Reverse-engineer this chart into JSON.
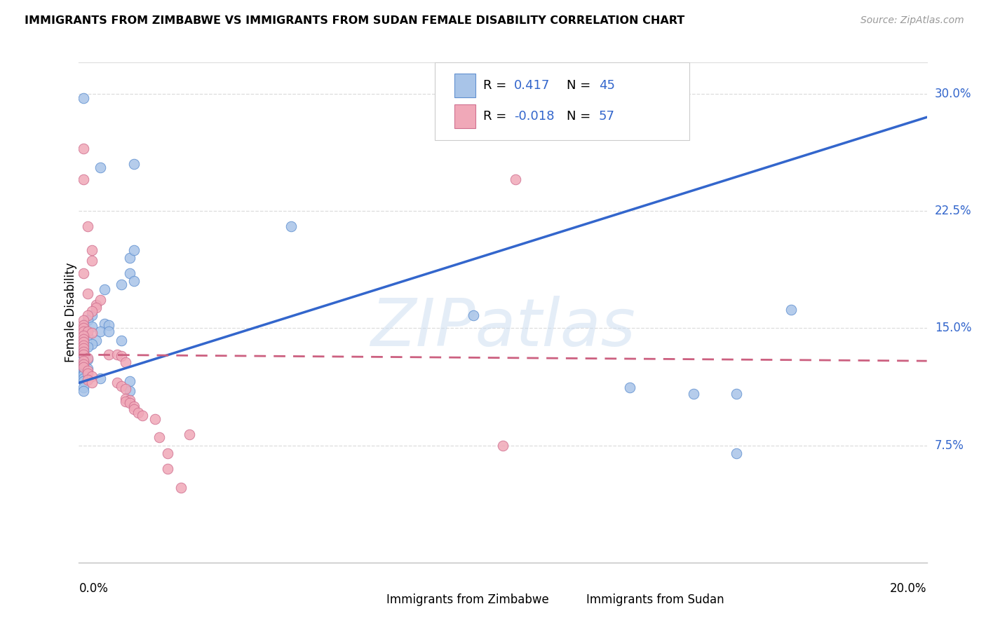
{
  "title": "IMMIGRANTS FROM ZIMBABWE VS IMMIGRANTS FROM SUDAN FEMALE DISABILITY CORRELATION CHART",
  "source": "Source: ZipAtlas.com",
  "ylabel": "Female Disability",
  "yticks": [
    0.075,
    0.15,
    0.225,
    0.3
  ],
  "ytick_labels": [
    "7.5%",
    "15.0%",
    "22.5%",
    "30.0%"
  ],
  "xlim": [
    0.0,
    0.2
  ],
  "ylim": [
    0.0,
    0.32
  ],
  "legend_r1_black": "R = ",
  "legend_r1_blue": " 0.417   N = 45",
  "legend_r2_black": "R = ",
  "legend_r2_blue": "-0.018   N = 57",
  "watermark": "ZIPatlas",
  "blue_face": "#A8C4E8",
  "blue_edge": "#6090D0",
  "blue_line": "#3366CC",
  "pink_face": "#F0A8B8",
  "pink_edge": "#D07090",
  "pink_line": "#CC6080",
  "tick_color": "#3366CC",
  "blue_scatter_x": [
    0.001,
    0.005,
    0.013,
    0.006,
    0.012,
    0.012,
    0.013,
    0.01,
    0.003,
    0.002,
    0.003,
    0.006,
    0.007,
    0.005,
    0.002,
    0.004,
    0.003,
    0.002,
    0.001,
    0.001,
    0.001,
    0.002,
    0.001,
    0.001,
    0.002,
    0.001,
    0.001,
    0.001,
    0.001,
    0.001,
    0.001,
    0.001,
    0.005,
    0.007,
    0.01,
    0.012,
    0.012,
    0.013,
    0.05,
    0.093,
    0.13,
    0.145,
    0.155,
    0.155,
    0.168
  ],
  "blue_scatter_y": [
    0.297,
    0.253,
    0.255,
    0.175,
    0.195,
    0.185,
    0.18,
    0.178,
    0.158,
    0.155,
    0.151,
    0.153,
    0.152,
    0.148,
    0.145,
    0.142,
    0.14,
    0.138,
    0.136,
    0.134,
    0.132,
    0.13,
    0.128,
    0.126,
    0.124,
    0.123,
    0.121,
    0.12,
    0.118,
    0.116,
    0.112,
    0.11,
    0.118,
    0.148,
    0.142,
    0.116,
    0.11,
    0.2,
    0.215,
    0.158,
    0.112,
    0.108,
    0.108,
    0.07,
    0.162
  ],
  "pink_scatter_x": [
    0.001,
    0.001,
    0.002,
    0.003,
    0.003,
    0.001,
    0.002,
    0.004,
    0.005,
    0.004,
    0.003,
    0.002,
    0.001,
    0.001,
    0.001,
    0.001,
    0.002,
    0.003,
    0.001,
    0.001,
    0.001,
    0.001,
    0.001,
    0.001,
    0.001,
    0.002,
    0.001,
    0.001,
    0.001,
    0.002,
    0.002,
    0.003,
    0.002,
    0.003,
    0.007,
    0.009,
    0.01,
    0.011,
    0.009,
    0.01,
    0.011,
    0.011,
    0.012,
    0.011,
    0.012,
    0.013,
    0.013,
    0.014,
    0.015,
    0.018,
    0.019,
    0.021,
    0.021,
    0.024,
    0.026,
    0.1,
    0.103
  ],
  "pink_scatter_y": [
    0.265,
    0.245,
    0.215,
    0.2,
    0.193,
    0.185,
    0.172,
    0.165,
    0.168,
    0.163,
    0.161,
    0.158,
    0.155,
    0.152,
    0.15,
    0.148,
    0.148,
    0.147,
    0.145,
    0.143,
    0.141,
    0.139,
    0.137,
    0.135,
    0.133,
    0.131,
    0.129,
    0.127,
    0.125,
    0.123,
    0.121,
    0.119,
    0.117,
    0.115,
    0.133,
    0.133,
    0.132,
    0.128,
    0.115,
    0.113,
    0.111,
    0.105,
    0.104,
    0.103,
    0.102,
    0.1,
    0.098,
    0.096,
    0.094,
    0.092,
    0.08,
    0.07,
    0.06,
    0.048,
    0.082,
    0.075,
    0.245
  ],
  "blue_trend_x": [
    0.0,
    0.2
  ],
  "blue_trend_y": [
    0.115,
    0.285
  ],
  "pink_trend_x": [
    0.0,
    0.2
  ],
  "pink_trend_y": [
    0.133,
    0.129
  ],
  "grid_color": "#DDDDDD",
  "bottom_legend_labels": [
    "Immigrants from Zimbabwe",
    "Immigrants from Sudan"
  ]
}
